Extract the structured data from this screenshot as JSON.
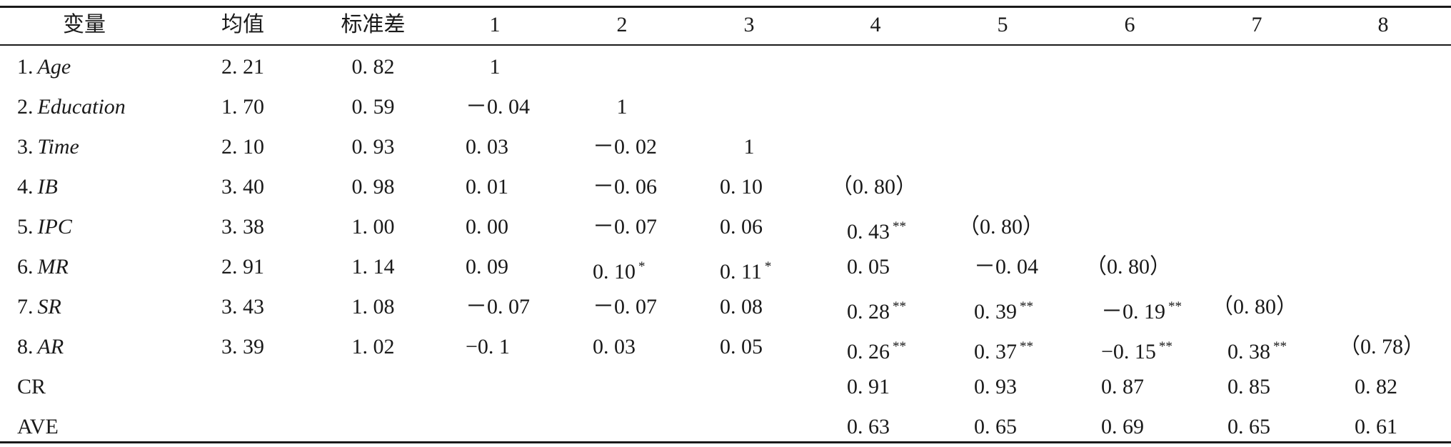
{
  "headers": {
    "variable": "变量",
    "mean": "均值",
    "sd": "标准差",
    "cols": [
      "1",
      "2",
      "3",
      "4",
      "5",
      "6",
      "7",
      "8"
    ]
  },
  "rows": [
    {
      "num": "1.",
      "name": "Age",
      "mean": "2. 21",
      "sd": "0. 82",
      "cells": [
        {
          "v": "1",
          "s": ""
        }
      ]
    },
    {
      "num": "2.",
      "name": "Education",
      "mean": "1. 70",
      "sd": "0. 59",
      "cells": [
        {
          "v": "－0. 04",
          "s": ""
        },
        {
          "v": "1",
          "s": ""
        }
      ]
    },
    {
      "num": "3.",
      "name": "Time",
      "mean": "2. 10",
      "sd": "0. 93",
      "cells": [
        {
          "v": "0. 03",
          "s": ""
        },
        {
          "v": "－0. 02",
          "s": ""
        },
        {
          "v": "1",
          "s": ""
        }
      ]
    },
    {
      "num": "4.",
      "name": "IB",
      "mean": "3. 40",
      "sd": "0. 98",
      "cells": [
        {
          "v": "0. 01",
          "s": ""
        },
        {
          "v": "－0. 06",
          "s": ""
        },
        {
          "v": "0. 10",
          "s": ""
        },
        {
          "v": "（0. 80）",
          "s": ""
        }
      ]
    },
    {
      "num": "5.",
      "name": "IPC",
      "mean": "3. 38",
      "sd": "1. 00",
      "cells": [
        {
          "v": "0. 00",
          "s": ""
        },
        {
          "v": "－0. 07",
          "s": ""
        },
        {
          "v": "0. 06",
          "s": ""
        },
        {
          "v": "0. 43",
          "s": "**"
        },
        {
          "v": "（0. 80）",
          "s": ""
        }
      ]
    },
    {
      "num": "6.",
      "name": "MR",
      "mean": "2. 91",
      "sd": "1. 14",
      "cells": [
        {
          "v": "0. 09",
          "s": ""
        },
        {
          "v": "0. 10",
          "s": "*"
        },
        {
          "v": "0. 11",
          "s": "*"
        },
        {
          "v": "0. 05",
          "s": ""
        },
        {
          "v": "－0. 04",
          "s": ""
        },
        {
          "v": "（0. 80）",
          "s": ""
        }
      ]
    },
    {
      "num": "7.",
      "name": "SR",
      "mean": "3. 43",
      "sd": "1. 08",
      "cells": [
        {
          "v": "－0. 07",
          "s": ""
        },
        {
          "v": "－0. 07",
          "s": ""
        },
        {
          "v": "0. 08",
          "s": ""
        },
        {
          "v": "0. 28",
          "s": "**"
        },
        {
          "v": "0. 39",
          "s": "**"
        },
        {
          "v": "－0. 19",
          "s": "**"
        },
        {
          "v": "（0. 80）",
          "s": ""
        }
      ]
    },
    {
      "num": "8.",
      "name": "AR",
      "mean": "3. 39",
      "sd": "1. 02",
      "cells": [
        {
          "v": "−0. 1",
          "s": ""
        },
        {
          "v": "0. 03",
          "s": ""
        },
        {
          "v": "0. 05",
          "s": ""
        },
        {
          "v": "0. 26",
          "s": "**"
        },
        {
          "v": "0. 37",
          "s": "**"
        },
        {
          "v": "−0. 15",
          "s": "**"
        },
        {
          "v": "0. 38",
          "s": "**"
        },
        {
          "v": "（0. 78）",
          "s": ""
        }
      ]
    }
  ],
  "footer_rows": [
    {
      "label": "CR",
      "values": [
        "0. 91",
        "0. 93",
        "0. 87",
        "0. 85",
        "0. 82"
      ]
    },
    {
      "label": "AVE",
      "values": [
        "0. 63",
        "0. 65",
        "0. 69",
        "0. 65",
        "0. 61"
      ]
    }
  ]
}
